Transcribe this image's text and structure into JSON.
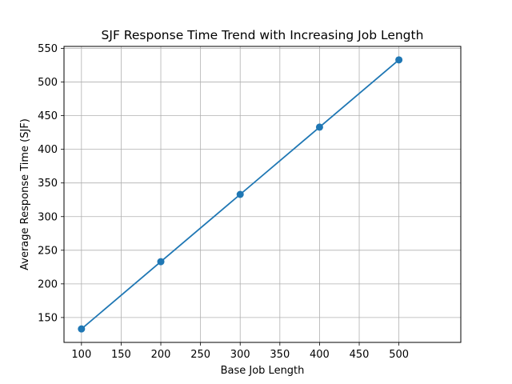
{
  "chart_data": {
    "type": "line",
    "title": "SJF Response Time Trend with Increasing Job Length",
    "xlabel": "Base Job Length",
    "ylabel": "Average Response Time (SJF)",
    "x": [
      100,
      200,
      300,
      400,
      500
    ],
    "series": [
      {
        "values": [
          133,
          233,
          333,
          433,
          533
        ],
        "color": "#1f77b4",
        "marker": "circle"
      }
    ],
    "xlim": [
      78,
      578
    ],
    "ylim": [
      113,
      553
    ],
    "xticks": [
      100,
      150,
      200,
      250,
      300,
      350,
      400,
      450,
      500
    ],
    "yticks": [
      150,
      200,
      250,
      300,
      350,
      400,
      450,
      500,
      550
    ],
    "grid": true,
    "legend": "none"
  }
}
